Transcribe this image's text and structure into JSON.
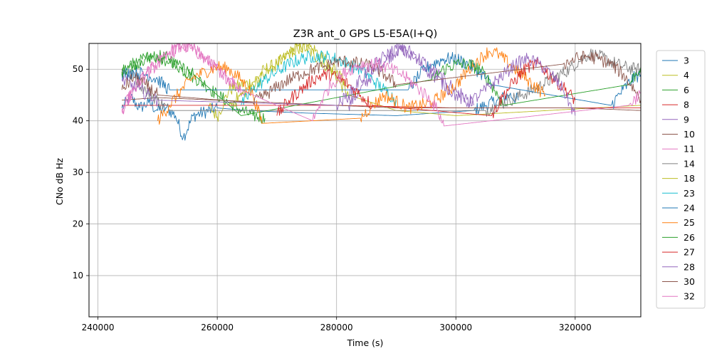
{
  "chart_data": {
    "type": "line",
    "title": "Z3R ant_0 GPS L5-E5A(I+Q)",
    "xlabel": "Time (s)",
    "ylabel": "CNo dB Hz",
    "xlim": [
      238500,
      331000
    ],
    "ylim": [
      2,
      55
    ],
    "xticks": [
      240000,
      260000,
      280000,
      300000,
      320000
    ],
    "yticks": [
      10,
      20,
      30,
      40,
      50
    ],
    "xtick_labels": [
      "240000",
      "260000",
      "280000",
      "300000",
      "320000"
    ],
    "ytick_labels": [
      "10",
      "20",
      "30",
      "40",
      "50"
    ],
    "grid": true,
    "legend_position": "outside-right",
    "series": [
      {
        "name": "3",
        "color": "#1f77b4",
        "x": [
          244000,
          245500,
          247000,
          248500,
          250000,
          251500,
          253000,
          254300,
          256000,
          260000,
          265000,
          275000,
          290000,
          303000,
          305000,
          307000,
          309000,
          310500
        ],
        "y": [
          42.5,
          44.5,
          42.5,
          43.5,
          42.0,
          42.5,
          41.0,
          36.8,
          41.0,
          42.5,
          42.0,
          41.5,
          41.0,
          42.0,
          43.0,
          44.0,
          45.0,
          44.0
        ]
      },
      {
        "name": "4",
        "color": "#bcbd22",
        "x": [
          258500,
          260000,
          262000,
          264000,
          266000,
          268000,
          270000,
          272000,
          273500,
          275000,
          277000,
          279000,
          280500,
          282000,
          290000,
          300000,
          331000
        ],
        "y": [
          43.0,
          40.8,
          46.0,
          47.0,
          47.5,
          50.0,
          51.0,
          53.0,
          54.5,
          54.0,
          52.0,
          50.0,
          47.5,
          45.0,
          42.0,
          41.0,
          43.0
        ]
      },
      {
        "name": "6",
        "color": "#2ca02c",
        "x": [
          244000,
          246000,
          248000,
          250000,
          252000,
          254000,
          256000,
          258000,
          260000,
          262000,
          264000,
          266000,
          268000
        ],
        "y": [
          49.0,
          51.0,
          52.0,
          52.5,
          52.0,
          50.0,
          48.5,
          47.0,
          45.0,
          43.5,
          42.0,
          41.0,
          40.5
        ]
      },
      {
        "name": "8",
        "color": "#d62728",
        "x": [
          244000,
          260000,
          280000,
          300000,
          320000,
          331000
        ],
        "y": [
          43.0,
          43.0,
          43.0,
          42.5,
          42.5,
          42.5
        ]
      },
      {
        "name": "9",
        "color": "#9467bd",
        "x": [
          282000,
          284000,
          286000,
          288000,
          290000,
          291500,
          293000,
          295000,
          297000,
          299000,
          301000,
          303000
        ],
        "y": [
          43.0,
          46.0,
          49.0,
          51.5,
          53.5,
          54.0,
          53.0,
          51.0,
          49.0,
          47.0,
          45.0,
          43.0
        ]
      },
      {
        "name": "10",
        "color": "#8c564b",
        "x": [
          244000,
          250000,
          260000,
          270000,
          280000,
          290000,
          300000,
          310000,
          320000,
          331000
        ],
        "y": [
          44.0,
          44.5,
          44.0,
          43.5,
          43.0,
          42.5,
          42.5,
          42.5,
          42.5,
          42.0
        ]
      },
      {
        "name": "11",
        "color": "#e377c2",
        "x": [
          244000,
          246000,
          248000,
          250000,
          252000,
          254000,
          255500,
          257000,
          259000,
          261000,
          263000,
          265000
        ],
        "y": [
          42.0,
          46.0,
          49.0,
          51.5,
          53.5,
          54.5,
          54.0,
          53.0,
          51.0,
          49.0,
          47.0,
          45.0
        ]
      },
      {
        "name": "14",
        "color": "#7f7f7f",
        "x": [
          244000,
          246000,
          248000,
          250000,
          252000,
          290000,
          305000,
          307000,
          309000,
          311000,
          313000,
          316000,
          319000,
          321000,
          322500,
          324000,
          326000,
          328000,
          330000,
          331000
        ],
        "y": [
          50.0,
          48.5,
          46.0,
          44.0,
          42.0,
          42.0,
          42.0,
          43.0,
          44.0,
          45.0,
          46.0,
          48.0,
          50.0,
          52.0,
          53.0,
          52.5,
          51.5,
          50.5,
          50.0,
          50.0
        ]
      },
      {
        "name": "18",
        "color": "#bcbd22",
        "x": [
          262000,
          264000,
          266000,
          268000,
          270000,
          272000,
          274000,
          276000,
          278000,
          280000,
          282000
        ],
        "y": [
          43.0,
          45.0,
          47.0,
          49.0,
          51.0,
          53.0,
          54.5,
          54.0,
          52.0,
          49.5,
          47.0
        ]
      },
      {
        "name": "23",
        "color": "#17becf",
        "x": [
          264000,
          266000,
          268000,
          270000,
          272000,
          274000,
          276000,
          278000,
          280000,
          282000,
          284000,
          286000,
          288000,
          290000
        ],
        "y": [
          43.0,
          46.0,
          48.0,
          49.5,
          51.0,
          52.0,
          52.5,
          52.5,
          52.0,
          51.0,
          50.0,
          48.0,
          46.0,
          44.0
        ]
      },
      {
        "name": "24",
        "color": "#1f77b4",
        "x": [
          244000,
          246000,
          248000,
          250000,
          252000,
          292000,
          294000,
          296000,
          298000,
          300000,
          302000,
          304000,
          306000,
          326000,
          328000,
          330000,
          331000
        ],
        "y": [
          49.0,
          49.5,
          49.0,
          48.0,
          46.0,
          46.0,
          49.0,
          51.0,
          52.0,
          52.0,
          51.0,
          49.5,
          47.0,
          43.0,
          46.0,
          48.5,
          49.0
        ]
      },
      {
        "name": "25",
        "color": "#ff7f0e",
        "x": [
          250000,
          252000,
          254000,
          256000,
          258000,
          260000,
          262000,
          264000,
          266000,
          267500,
          284000,
          286000,
          288000,
          292000,
          296000,
          300000,
          303000,
          305500,
          307000,
          309000,
          312000,
          315000
        ],
        "y": [
          40.0,
          43.0,
          46.0,
          48.5,
          49.5,
          50.5,
          50.0,
          48.0,
          45.0,
          39.5,
          40.5,
          43.0,
          45.0,
          42.5,
          43.5,
          47.0,
          51.0,
          53.5,
          53.0,
          51.0,
          48.0,
          45.0
        ]
      },
      {
        "name": "26",
        "color": "#2ca02c",
        "x": [
          244000,
          246000,
          248000,
          250000,
          252000,
          256000,
          264000,
          296000,
          298000,
          300000,
          302000,
          304000,
          306000,
          308000,
          329000,
          331000
        ],
        "y": [
          49.5,
          51.0,
          52.0,
          52.5,
          51.5,
          49.0,
          41.0,
          48.0,
          50.0,
          51.0,
          51.0,
          50.0,
          47.0,
          43.0,
          47.0,
          50.5
        ]
      },
      {
        "name": "27",
        "color": "#d62728",
        "x": [
          270000,
          272000,
          274000,
          276000,
          278000,
          280000,
          282000,
          284000,
          286000,
          306000,
          308000,
          310000,
          312000,
          314000,
          316000,
          318000,
          320000
        ],
        "y": [
          41.0,
          44.0,
          46.0,
          48.0,
          49.0,
          48.5,
          47.0,
          45.0,
          43.0,
          41.0,
          45.0,
          48.0,
          50.5,
          51.0,
          48.5,
          46.5,
          44.0
        ]
      },
      {
        "name": "28",
        "color": "#9467bd",
        "x": [
          244000,
          247000,
          250000,
          280000,
          282000,
          284000,
          286000,
          288000,
          290000,
          292000,
          294000,
          296000,
          298000,
          300000,
          302000,
          304000,
          306000,
          308000,
          310000,
          312000,
          314000,
          316000,
          318000,
          320000
        ],
        "y": [
          48.0,
          46.0,
          44.0,
          43.0,
          45.0,
          48.0,
          50.5,
          52.5,
          54.0,
          53.0,
          51.0,
          49.0,
          47.0,
          45.0,
          43.5,
          45.0,
          47.0,
          49.0,
          51.0,
          52.0,
          51.0,
          49.0,
          46.0,
          41.0
        ]
      },
      {
        "name": "30",
        "color": "#8c564b",
        "x": [
          244000,
          246000,
          248000,
          250000,
          266000,
          268000,
          270000,
          272000,
          274000,
          276000,
          278000,
          280000,
          282000,
          284000,
          286000,
          288000,
          290000,
          318000,
          320000,
          322000,
          324000,
          326000,
          328000,
          330000,
          331000
        ],
        "y": [
          46.0,
          48.5,
          47.0,
          45.0,
          43.5,
          45.0,
          46.5,
          48.0,
          49.0,
          50.0,
          50.5,
          51.5,
          51.5,
          51.0,
          50.5,
          49.0,
          47.0,
          51.0,
          52.0,
          52.5,
          52.0,
          51.0,
          49.0,
          46.0,
          44.0
        ]
      },
      {
        "name": "32",
        "color": "#e377c2",
        "x": [
          244000,
          246000,
          248000,
          250000,
          252000,
          254000,
          256000,
          258000,
          260000,
          262000,
          264000,
          276000,
          277500,
          279000,
          281000,
          283000,
          285000,
          287000,
          289000,
          291000,
          293000,
          295000,
          297000,
          298000,
          329000,
          331000
        ],
        "y": [
          42.0,
          46.0,
          49.0,
          51.0,
          53.0,
          54.5,
          54.0,
          52.0,
          50.0,
          48.0,
          46.0,
          40.0,
          44.0,
          47.0,
          49.0,
          50.5,
          51.0,
          51.0,
          50.0,
          49.0,
          47.0,
          45.0,
          42.0,
          39.0,
          43.0,
          45.5
        ]
      }
    ]
  }
}
